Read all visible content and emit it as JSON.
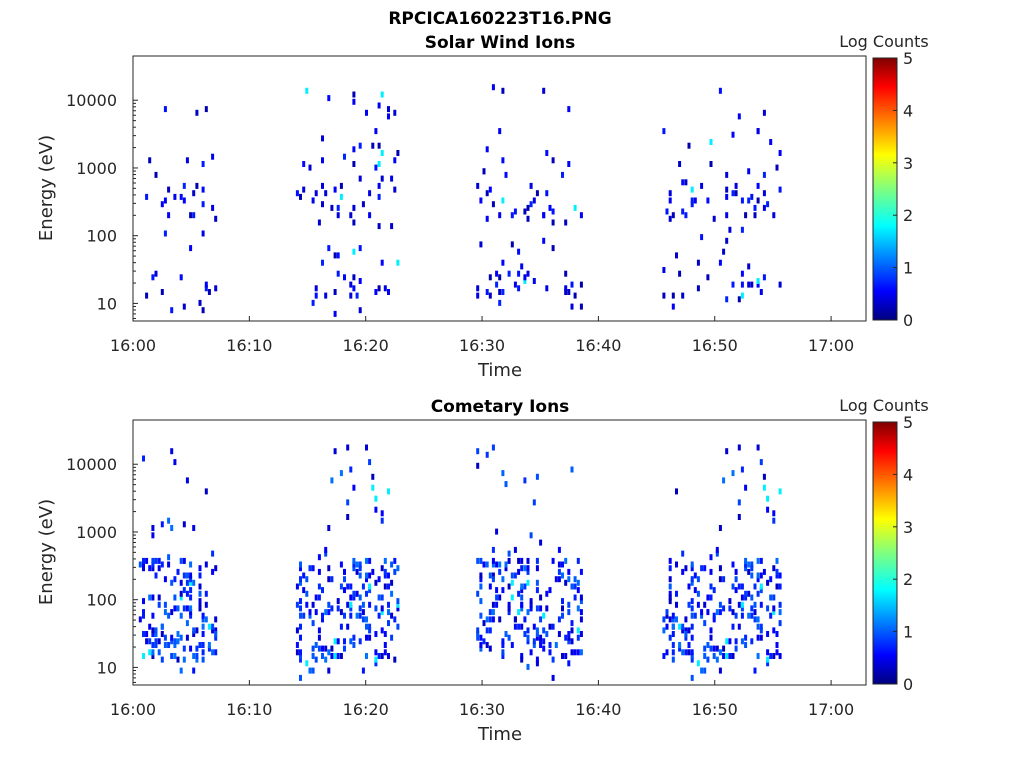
{
  "figure": {
    "filename_title": "RPCICA160223T16.PNG"
  },
  "colorbar": {
    "label": "Log Counts",
    "ticks": [
      "0",
      "1",
      "2",
      "3",
      "4",
      "5"
    ],
    "range": [
      0,
      5
    ],
    "colormap": "jet"
  },
  "chart_data": [
    {
      "type": "heatmap",
      "title": "Solar Wind Ions",
      "xlabel": "Time",
      "ylabel": "Energy (eV)",
      "y_scale": "log",
      "xlim": [
        "16:00",
        "17:03"
      ],
      "ylim": [
        5.5,
        45000
      ],
      "x_ticks": [
        "16:00",
        "16:10",
        "16:20",
        "16:30",
        "16:40",
        "16:50",
        "17:00"
      ],
      "y_ticks": [
        "10",
        "100",
        "1000",
        "10000"
      ],
      "grid": false,
      "value_label": "Log Counts",
      "bursts_start_minute": [
        0.5,
        14.0,
        29.5,
        45.5
      ],
      "bursts_end_minute": [
        7.0,
        22.8,
        38.5,
        55.5
      ],
      "dominant_energy_bands_eV": [
        [
          150,
          600
        ],
        [
          12,
          30
        ]
      ],
      "typical_log_counts": [
        0.2,
        0.8
      ],
      "max_log_counts": 2.0
    },
    {
      "type": "heatmap",
      "title": "Cometary Ions",
      "xlabel": "Time",
      "ylabel": "Energy (eV)",
      "y_scale": "log",
      "xlim": [
        "16:00",
        "17:03"
      ],
      "ylim": [
        5.5,
        45000
      ],
      "x_ticks": [
        "16:00",
        "16:10",
        "16:20",
        "16:30",
        "16:40",
        "16:50",
        "17:00"
      ],
      "y_ticks": [
        "10",
        "100",
        "1000",
        "10000"
      ],
      "grid": false,
      "value_label": "Log Counts",
      "bursts_start_minute": [
        0.5,
        14.0,
        29.5,
        45.5
      ],
      "bursts_end_minute": [
        7.0,
        22.8,
        38.5,
        55.5
      ],
      "dominant_energy_bands_eV": [
        [
          50,
          400
        ],
        [
          12,
          40
        ]
      ],
      "typical_log_counts": [
        0.3,
        1.2
      ],
      "max_log_counts": 2.0
    }
  ]
}
